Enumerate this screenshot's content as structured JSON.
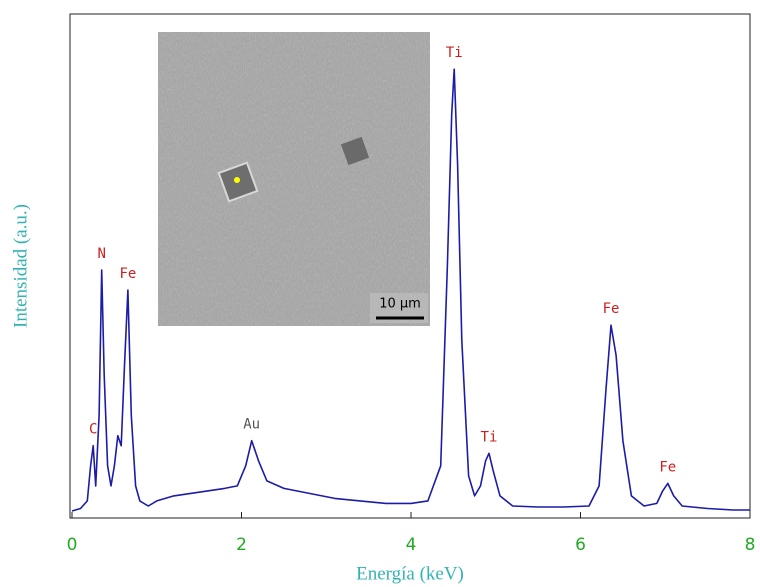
{
  "chart_data": {
    "type": "line",
    "xlabel": "Energía (keV)",
    "ylabel": "Intensidad (a.u.)",
    "color": "#1c1ca8",
    "xlim": [
      0,
      8
    ],
    "xticks": [
      0,
      2,
      4,
      6,
      8
    ],
    "ylim": [
      0,
      100
    ],
    "x": [
      0.0,
      0.1,
      0.18,
      0.22,
      0.25,
      0.28,
      0.32,
      0.35,
      0.38,
      0.42,
      0.46,
      0.5,
      0.54,
      0.58,
      0.62,
      0.66,
      0.7,
      0.75,
      0.8,
      0.9,
      1.0,
      1.2,
      1.4,
      1.6,
      1.8,
      1.95,
      2.05,
      2.12,
      2.2,
      2.3,
      2.5,
      2.8,
      3.1,
      3.4,
      3.7,
      4.0,
      4.2,
      4.35,
      4.43,
      4.48,
      4.51,
      4.55,
      4.6,
      4.68,
      4.75,
      4.82,
      4.88,
      4.92,
      4.97,
      5.05,
      5.2,
      5.5,
      5.8,
      6.1,
      6.22,
      6.3,
      6.36,
      6.42,
      6.5,
      6.6,
      6.75,
      6.9,
      6.97,
      7.03,
      7.1,
      7.2,
      7.5,
      7.8,
      8.0
    ],
    "values": [
      1,
      1.5,
      3,
      10,
      14,
      6,
      20,
      49,
      28,
      10,
      6,
      10,
      16,
      14,
      30,
      45,
      20,
      6,
      3,
      2,
      3,
      4,
      4.5,
      5,
      5.5,
      6,
      10,
      15,
      11,
      7,
      5.5,
      4.5,
      3.5,
      3,
      2.5,
      2.5,
      3,
      10,
      50,
      80,
      89,
      70,
      35,
      8,
      4,
      6,
      11,
      12.5,
      9,
      4,
      2,
      1.8,
      1.8,
      2,
      6,
      25,
      38,
      32,
      15,
      4,
      2,
      2.5,
      5,
      6.5,
      4,
      2,
      1.5,
      1.2,
      1.2
    ],
    "peak_labels": [
      {
        "label": "C",
        "x": 0.25,
        "color": "#cc2020"
      },
      {
        "label": "N",
        "x": 0.35,
        "color": "#cc2020"
      },
      {
        "label": "Fe",
        "x": 0.66,
        "color": "#cc2020"
      },
      {
        "label": "Au",
        "x": 2.12,
        "color": "#555555"
      },
      {
        "label": "Ti",
        "x": 4.51,
        "color": "#cc2020"
      },
      {
        "label": "Ti",
        "x": 4.92,
        "color": "#cc2020"
      },
      {
        "label": "Fe",
        "x": 6.36,
        "color": "#cc2020"
      },
      {
        "label": "Fe",
        "x": 7.03,
        "color": "#cc2020"
      }
    ]
  },
  "inset": {
    "scale_bar": "10 µm"
  }
}
